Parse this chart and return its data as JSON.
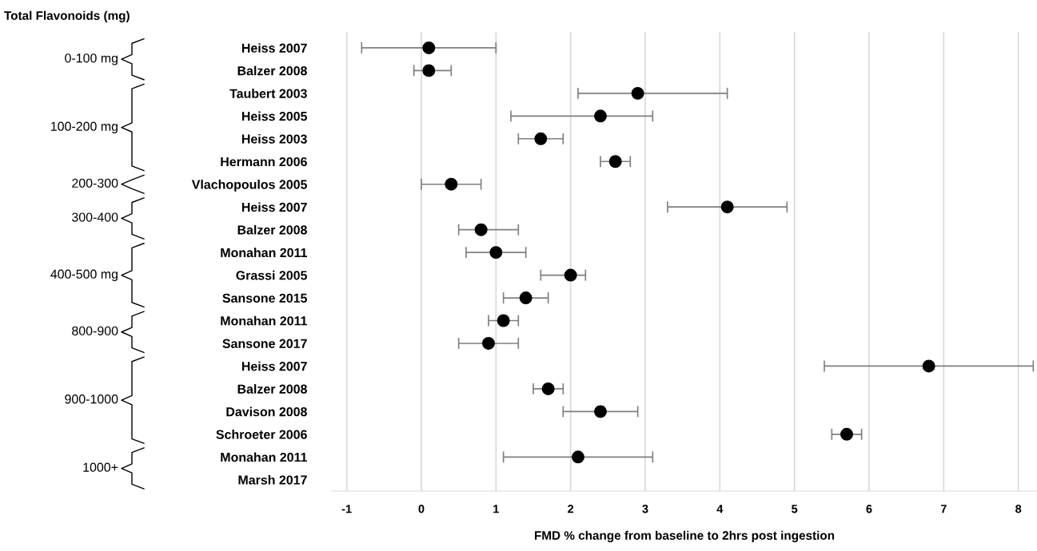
{
  "chart_data": {
    "type": "scatter",
    "orientation": "horizontal",
    "title": "Total Flavonoids (mg)",
    "xlabel": "FMD % change from baseline to 2hrs post ingestion",
    "categories": [
      "Heiss 2007",
      "Balzer 2008",
      "Taubert 2003",
      "Heiss 2005",
      "Heiss 2003",
      "Hermann 2006",
      "Vlachopoulos 2005",
      "Heiss 2007",
      "Balzer 2008",
      "Monahan 2011",
      "Grassi 2005",
      "Sansone 2015",
      "Monahan 2011",
      "Sansone 2017",
      "Heiss 2007",
      "Balzer 2008",
      "Davison 2008",
      "Schroeter 2006",
      "Monahan 2011",
      "Marsh 2017"
    ],
    "values": [
      0.1,
      0.1,
      2.9,
      2.4,
      1.6,
      2.6,
      0.4,
      4.1,
      0.8,
      1.0,
      2.0,
      1.4,
      1.1,
      0.9,
      6.8,
      1.7,
      2.4,
      5.7,
      2.1,
      null
    ],
    "errors": [
      [
        -0.8,
        1.0
      ],
      [
        -0.1,
        0.4
      ],
      [
        2.1,
        4.1
      ],
      [
        1.2,
        3.1
      ],
      [
        1.3,
        1.9
      ],
      [
        2.4,
        2.8
      ],
      [
        0,
        0.8
      ],
      [
        3.3,
        4.9
      ],
      [
        0.5,
        1.3
      ],
      [
        0.6,
        1.4
      ],
      [
        1.6,
        2.2
      ],
      [
        1.1,
        1.7
      ],
      [
        0.9,
        1.3
      ],
      [
        0.5,
        1.3
      ],
      [
        5.4,
        8.2
      ],
      [
        1.5,
        1.9
      ],
      [
        1.9,
        2.9
      ],
      [
        5.5,
        5.9
      ],
      [
        1.1,
        3.1
      ],
      null
    ],
    "color": "#000000",
    "marker": "circle",
    "xlim": [
      -1.2,
      8.25
    ],
    "xticks": [
      -1,
      0,
      1,
      2,
      3,
      4,
      5,
      6,
      7,
      8
    ],
    "grid": "x",
    "annotations": [
      "0-100 mg",
      "100-200 mg",
      "200-300",
      "300-400",
      "400-500 mg",
      "800-900",
      "900-1000",
      "1000+"
    ]
  }
}
